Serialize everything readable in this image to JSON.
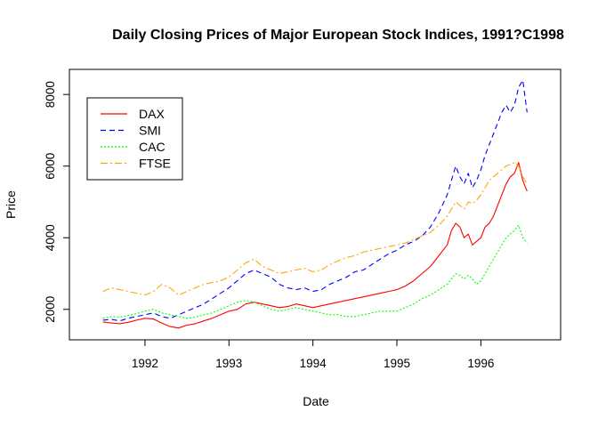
{
  "chart_data": {
    "type": "line",
    "title": "Daily Closing Prices of Major European Stock Indices, 1991?C1998",
    "xlabel": "Date",
    "ylabel": "Price",
    "xlim": [
      1991.1,
      1996.95
    ],
    "ylim": [
      1150,
      8700
    ],
    "x_ticks": [
      1992,
      1993,
      1994,
      1995,
      1996
    ],
    "x_tick_labels": [
      "1992",
      "1993",
      "1994",
      "1995",
      "1996"
    ],
    "y_ticks": [
      2000,
      4000,
      6000,
      8000
    ],
    "y_tick_labels": [
      "2000",
      "4000",
      "6000",
      "8000"
    ],
    "grid": false,
    "legend": {
      "position": "top-left",
      "box": true
    },
    "series": [
      {
        "name": "DAX",
        "color": "#ff0000",
        "dash": "solid",
        "x": [
          1991.5,
          1991.6,
          1991.7,
          1991.8,
          1991.9,
          1992.0,
          1992.1,
          1992.2,
          1992.3,
          1992.4,
          1992.5,
          1992.6,
          1992.7,
          1992.8,
          1992.9,
          1993.0,
          1993.1,
          1993.2,
          1993.3,
          1993.4,
          1993.5,
          1993.6,
          1993.7,
          1993.8,
          1993.9,
          1994.0,
          1994.1,
          1994.2,
          1994.3,
          1994.4,
          1994.5,
          1994.6,
          1994.7,
          1994.8,
          1994.9,
          1995.0,
          1995.1,
          1995.2,
          1995.3,
          1995.4,
          1995.5,
          1995.6,
          1995.65,
          1995.7,
          1995.75,
          1995.8,
          1995.85,
          1995.9,
          1995.95,
          1996.0,
          1996.05,
          1996.1,
          1996.15,
          1996.2,
          1996.25,
          1996.3,
          1996.35,
          1996.4,
          1996.45,
          1996.5,
          1996.55
        ],
        "values": [
          1650,
          1620,
          1600,
          1640,
          1700,
          1750,
          1730,
          1620,
          1520,
          1480,
          1560,
          1600,
          1680,
          1750,
          1850,
          1950,
          2000,
          2150,
          2200,
          2150,
          2100,
          2050,
          2080,
          2150,
          2100,
          2050,
          2100,
          2150,
          2200,
          2250,
          2300,
          2350,
          2400,
          2450,
          2500,
          2550,
          2650,
          2800,
          3000,
          3200,
          3500,
          3800,
          4200,
          4400,
          4300,
          4000,
          4100,
          3800,
          3900,
          4000,
          4300,
          4400,
          4600,
          4900,
          5200,
          5500,
          5700,
          5800,
          6100,
          5600,
          5300
        ]
      },
      {
        "name": "SMI",
        "color": "#0000ff",
        "dash": "6,4",
        "x": [
          1991.5,
          1991.6,
          1991.7,
          1991.8,
          1991.9,
          1992.0,
          1992.1,
          1992.2,
          1992.3,
          1992.4,
          1992.5,
          1992.6,
          1992.7,
          1992.8,
          1992.9,
          1993.0,
          1993.1,
          1993.2,
          1993.3,
          1993.4,
          1993.5,
          1993.6,
          1993.7,
          1993.8,
          1993.9,
          1994.0,
          1994.1,
          1994.2,
          1994.3,
          1994.4,
          1994.5,
          1994.6,
          1994.7,
          1994.8,
          1994.9,
          1995.0,
          1995.1,
          1995.2,
          1995.3,
          1995.4,
          1995.5,
          1995.6,
          1995.65,
          1995.7,
          1995.75,
          1995.8,
          1995.85,
          1995.9,
          1995.95,
          1996.0,
          1996.05,
          1996.1,
          1996.15,
          1996.2,
          1996.25,
          1996.3,
          1996.35,
          1996.4,
          1996.45,
          1996.5,
          1996.55
        ],
        "values": [
          1700,
          1720,
          1680,
          1750,
          1800,
          1850,
          1900,
          1800,
          1750,
          1850,
          1950,
          2050,
          2150,
          2300,
          2450,
          2600,
          2800,
          3000,
          3100,
          3000,
          2900,
          2700,
          2600,
          2550,
          2600,
          2500,
          2550,
          2700,
          2800,
          2900,
          3050,
          3100,
          3250,
          3400,
          3550,
          3650,
          3800,
          3900,
          4050,
          4300,
          4700,
          5200,
          5600,
          6000,
          5700,
          5500,
          5800,
          5400,
          5600,
          5900,
          6300,
          6600,
          6900,
          7200,
          7500,
          7700,
          7500,
          7700,
          8200,
          8400,
          7500
        ]
      },
      {
        "name": "CAC",
        "color": "#00ff00",
        "dash": "2,2",
        "x": [
          1991.5,
          1991.6,
          1991.7,
          1991.8,
          1991.9,
          1992.0,
          1992.1,
          1992.2,
          1992.3,
          1992.4,
          1992.5,
          1992.6,
          1992.7,
          1992.8,
          1992.9,
          1993.0,
          1993.1,
          1993.2,
          1993.3,
          1993.4,
          1993.5,
          1993.6,
          1993.7,
          1993.8,
          1993.9,
          1994.0,
          1994.1,
          1994.2,
          1994.3,
          1994.4,
          1994.5,
          1994.6,
          1994.7,
          1994.8,
          1994.9,
          1995.0,
          1995.1,
          1995.2,
          1995.3,
          1995.4,
          1995.5,
          1995.6,
          1995.65,
          1995.7,
          1995.75,
          1995.8,
          1995.85,
          1995.9,
          1995.95,
          1996.0,
          1996.05,
          1996.1,
          1996.15,
          1996.2,
          1996.25,
          1996.3,
          1996.35,
          1996.4,
          1996.45,
          1996.5,
          1996.55
        ],
        "values": [
          1750,
          1800,
          1780,
          1830,
          1880,
          1950,
          2000,
          1900,
          1850,
          1800,
          1750,
          1780,
          1850,
          1900,
          2000,
          2100,
          2200,
          2250,
          2200,
          2100,
          2000,
          1950,
          2000,
          2050,
          2000,
          1950,
          1900,
          1850,
          1850,
          1800,
          1800,
          1850,
          1900,
          1950,
          1950,
          1950,
          2050,
          2150,
          2300,
          2400,
          2550,
          2700,
          2850,
          3000,
          2950,
          2850,
          2950,
          2850,
          2700,
          2800,
          3000,
          3200,
          3400,
          3600,
          3800,
          4000,
          4100,
          4200,
          4350,
          4000,
          3850
        ]
      },
      {
        "name": "FTSE",
        "color": "#ffa500",
        "dash": "8,3,2,3",
        "x": [
          1991.5,
          1991.6,
          1991.7,
          1991.8,
          1991.9,
          1992.0,
          1992.1,
          1992.2,
          1992.3,
          1992.4,
          1992.5,
          1992.6,
          1992.7,
          1992.8,
          1992.9,
          1993.0,
          1993.1,
          1993.2,
          1993.3,
          1993.4,
          1993.5,
          1993.6,
          1993.7,
          1993.8,
          1993.9,
          1994.0,
          1994.1,
          1994.2,
          1994.3,
          1994.4,
          1994.5,
          1994.6,
          1994.7,
          1994.8,
          1994.9,
          1995.0,
          1995.1,
          1995.2,
          1995.3,
          1995.4,
          1995.5,
          1995.6,
          1995.65,
          1995.7,
          1995.75,
          1995.8,
          1995.85,
          1995.9,
          1995.95,
          1996.0,
          1996.05,
          1996.1,
          1996.15,
          1996.2,
          1996.25,
          1996.3,
          1996.35,
          1996.4,
          1996.45,
          1996.5,
          1996.55
        ],
        "values": [
          2500,
          2600,
          2550,
          2500,
          2450,
          2400,
          2500,
          2700,
          2600,
          2400,
          2500,
          2600,
          2700,
          2750,
          2800,
          2900,
          3100,
          3300,
          3400,
          3200,
          3100,
          3000,
          3050,
          3100,
          3150,
          3050,
          3100,
          3250,
          3350,
          3450,
          3500,
          3600,
          3650,
          3700,
          3750,
          3800,
          3850,
          3950,
          4050,
          4150,
          4350,
          4600,
          4800,
          5000,
          4900,
          4800,
          5000,
          4950,
          5050,
          5200,
          5400,
          5600,
          5700,
          5800,
          5900,
          6000,
          6050,
          6100,
          6000,
          5700,
          5500
        ]
      }
    ]
  }
}
